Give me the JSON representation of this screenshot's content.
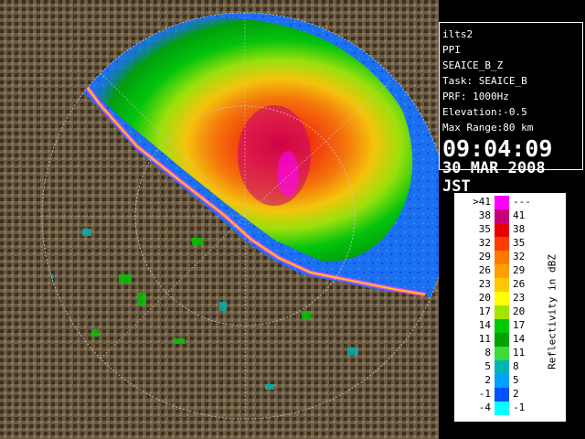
{
  "info": {
    "radar_name": "ilts2",
    "scan_mode": "PPI",
    "product": "SEAICE_B_Z",
    "task": "Task: SEAICE_B",
    "prf": "PRF: 1000Hz",
    "elevation": "Elevation:-0.5",
    "max_range": "Max Range:80 km",
    "time": "09:04:09",
    "date": "30 MAR 2008 JST"
  },
  "legend": {
    "title": "Reflectivity in dBZ",
    "rows": [
      {
        "low": ">41",
        "high": "---",
        "color": "#ff00ff"
      },
      {
        "low": "38",
        "high": "41",
        "color": "#c80078"
      },
      {
        "low": "35",
        "high": "38",
        "color": "#e60000"
      },
      {
        "low": "32",
        "high": "35",
        "color": "#ff3c00"
      },
      {
        "low": "29",
        "high": "32",
        "color": "#ff7800"
      },
      {
        "low": "26",
        "high": "29",
        "color": "#ffa000"
      },
      {
        "low": "23",
        "high": "26",
        "color": "#ffc800"
      },
      {
        "low": "20",
        "high": "23",
        "color": "#ffff00"
      },
      {
        "low": "17",
        "high": "20",
        "color": "#a0e600"
      },
      {
        "low": "14",
        "high": "17",
        "color": "#00c800"
      },
      {
        "low": "11",
        "high": "14",
        "color": "#00a000"
      },
      {
        "low": "8",
        "high": "11",
        "color": "#3cdc3c"
      },
      {
        "low": "5",
        "high": "8",
        "color": "#00b4b4"
      },
      {
        "low": "2",
        "high": "5",
        "color": "#00a0ff"
      },
      {
        "low": "-1",
        "high": "2",
        "color": "#0050ff"
      },
      {
        "low": "-4",
        "high": "-1",
        "color": "#00ffff"
      }
    ]
  },
  "colors": {
    "sea": "#1e6ef0",
    "land": "#6b5a40",
    "land_dark": "#3a3025",
    "range_ring": "#c8c8c8",
    "coast": "#ff3cff"
  }
}
